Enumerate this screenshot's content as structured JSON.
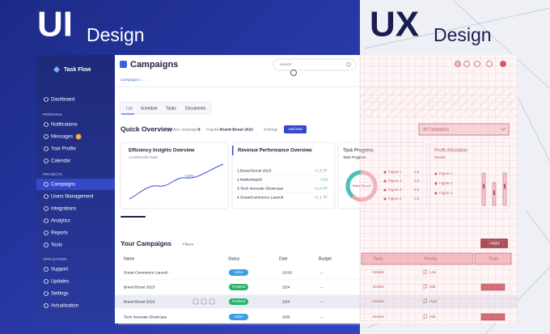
{
  "header": {
    "left_title": "UI",
    "left_subtitle": "Design",
    "right_title": "UX",
    "right_subtitle": "Design"
  },
  "sidebar": {
    "brand": "Task Flow",
    "dashboard": "Dashboard",
    "messages_badge": "3",
    "sections": [
      {
        "label": "PERSONAL",
        "items": [
          "Notifications",
          "Messages",
          "Your Profile",
          "Calendar"
        ]
      },
      {
        "label": "PROJECTS",
        "items": [
          "Campaigns",
          "Users Management",
          "Integrations",
          "Analytics",
          "Reports",
          "Tools"
        ]
      },
      {
        "label": "APPLICATION",
        "items": [
          "Support",
          "Updates",
          "Settings",
          "Actualization"
        ]
      }
    ]
  },
  "topbar": {
    "title": "Campaigns",
    "search_placeholder": "Search",
    "breadcrumb": "Campaigns / ...",
    "tabs": [
      "List",
      "Schedule",
      "Tasks",
      "Documents"
    ]
  },
  "overview": {
    "title": "Quick Overview",
    "active_label": "Active campaigns",
    "active_count": 5,
    "popular_label": "Popular",
    "popular_value": "Brand Boost 2023",
    "settings": "Settings",
    "button": "Add lead",
    "filter": "All Campaigns"
  },
  "cards": {
    "efficiency": {
      "title": "Efficiency Insights Overview",
      "subtitle": "Cost/Benefit Ratio",
      "annotation": "+12%"
    },
    "revenue": {
      "title": "Revenue Performance Overview",
      "rows": [
        {
          "name": "1.Brand Boost 2023",
          "value": "+1.3 TF"
        },
        {
          "name": "2.MarketingX6",
          "value": "+3.6"
        },
        {
          "name": "3.Tech Innovate Showcase",
          "value": "+2.4 TF"
        },
        {
          "name": "4.SmartCommerce Launch",
          "value": "+1.1 TF"
        }
      ]
    },
    "task_progress": {
      "title": "Task Progress",
      "subtitle": "Task Progress",
      "center": "Brand Boost",
      "legend": [
        {
          "name": "Figure 1",
          "value": "0.5"
        },
        {
          "name": "Figure 2",
          "value": "0.5"
        },
        {
          "name": "Figure 3",
          "value": "0.5"
        },
        {
          "name": "Figure 4",
          "value": "0.5"
        }
      ]
    },
    "profit": {
      "title": "Profit Allocation",
      "subtitle": "Details",
      "legend": [
        "Figure 1",
        "Figure 2",
        "Figure 3"
      ]
    }
  },
  "table": {
    "title": "Your Campaigns",
    "filter": "Filters",
    "add_button": "+Add",
    "columns": [
      "Name",
      "Status",
      "Date",
      "Budget",
      "Tasks",
      "Priority",
      "Team"
    ],
    "rows": [
      [
        "Smart Commerce Launch",
        "Active",
        "21/10",
        "--",
        "Details",
        "Low"
      ],
      [
        "Brand Boost 2023",
        "Finished",
        "2/24",
        "--",
        "Details",
        "Mid"
      ],
      [
        "Brand Boost 2023",
        "Finished",
        "2/24",
        "--",
        "Details",
        "High"
      ],
      [
        "Tech Innovate Showcase",
        "Active",
        "3/30",
        "--",
        "Details",
        "Mid"
      ]
    ]
  }
}
